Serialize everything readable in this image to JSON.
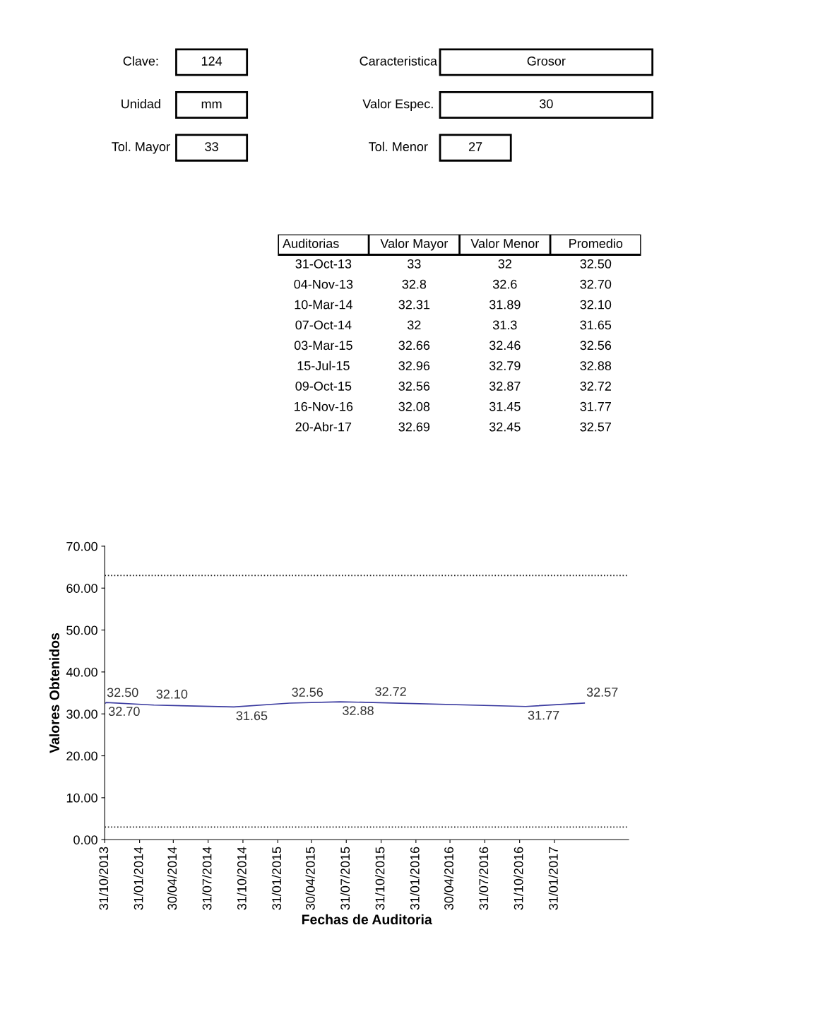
{
  "chart_data": [
    {
      "type": "other",
      "annotations": [
        "Clave:",
        "124",
        "Caracteristica",
        "Grosor",
        "Unidad",
        "mm",
        "Valor Espec.",
        "30",
        "Tol. Mayor",
        "33",
        "Tol. Menor",
        "27"
      ]
    },
    {
      "type": "other",
      "annotations": [
        "Auditorias",
        "Valor Mayor",
        "Valor Menor",
        "Promedio",
        "31-Oct-13",
        "33",
        "32",
        "32.50",
        "04-Nov-13",
        "32.8",
        "32.6",
        "32.70",
        "10-Mar-14",
        "32.31",
        "31.89",
        "32.10",
        "07-Oct-14",
        "32",
        "31.3",
        "31.65",
        "03-Mar-15",
        "32.66",
        "32.46",
        "32.56",
        "15-Jul-15",
        "32.96",
        "32.79",
        "32.88",
        "09-Oct-15",
        "32.56",
        "32.87",
        "32.72",
        "16-Nov-16",
        "32.08",
        "31.45",
        "31.77",
        "20-Abr-17",
        "32.69",
        "32.45",
        "32.57"
      ]
    },
    {
      "type": "line",
      "xlabel": "Fechas de Auditoria",
      "ylabel": "Valores Obtenidos",
      "x": [
        "2013-10-31",
        "2013-11-04",
        "2014-03-10",
        "2014-10-07",
        "2015-03-03",
        "2015-07-15",
        "2015-10-09",
        "2016-11-16",
        "2017-04-20"
      ],
      "series": [
        {
          "color": "#3c3ca0",
          "values": [
            32.5,
            32.7,
            32.1,
            31.65,
            32.56,
            32.88,
            32.72,
            31.77,
            32.57
          ],
          "value_labels": [
            "32.50",
            "32.70",
            "32.10",
            "31.65",
            "32.56",
            "32.88",
            "32.72",
            "31.77",
            "32.57"
          ]
        }
      ],
      "xlim": [
        "2013-10-31",
        "2017-08-15"
      ],
      "xticks": [
        {
          "value": "2013-10-31",
          "label": "31/10/2013"
        },
        {
          "value": "2014-01-31",
          "label": "31/01/2014"
        },
        {
          "value": "2014-04-30",
          "label": "30/04/2014"
        },
        {
          "value": "2014-07-31",
          "label": "31/07/2014"
        },
        {
          "value": "2014-10-31",
          "label": "31/10/2014"
        },
        {
          "value": "2015-01-31",
          "label": "31/01/2015"
        },
        {
          "value": "2015-04-30",
          "label": "30/04/2015"
        },
        {
          "value": "2015-07-31",
          "label": "31/07/2015"
        },
        {
          "value": "2015-10-31",
          "label": "31/10/2015"
        },
        {
          "value": "2016-01-31",
          "label": "31/01/2016"
        },
        {
          "value": "2016-04-30",
          "label": "30/04/2016"
        },
        {
          "value": "2016-07-31",
          "label": "31/07/2016"
        },
        {
          "value": "2016-10-31",
          "label": "31/10/2016"
        },
        {
          "value": "2017-01-31",
          "label": "31/01/2017"
        }
      ],
      "ylim": [
        0,
        70
      ],
      "yticks": [
        {
          "value": 0,
          "label": "0.00"
        },
        {
          "value": 10,
          "label": "10.00"
        },
        {
          "value": 20,
          "label": "20.00"
        },
        {
          "value": 30,
          "label": "30.00"
        },
        {
          "value": 40,
          "label": "40.00"
        },
        {
          "value": 50,
          "label": "50.00"
        },
        {
          "value": 60,
          "label": "60.00"
        },
        {
          "value": 70,
          "label": "70.00"
        }
      ],
      "ref_lines": [
        {
          "axis": "y",
          "value": 63,
          "color": "#222222",
          "line_style": "dotted"
        },
        {
          "axis": "y",
          "value": 3,
          "color": "#222222",
          "line_style": "dotted"
        }
      ],
      "grid": false,
      "legend": false,
      "marker": "none",
      "line_style": "solid"
    }
  ]
}
